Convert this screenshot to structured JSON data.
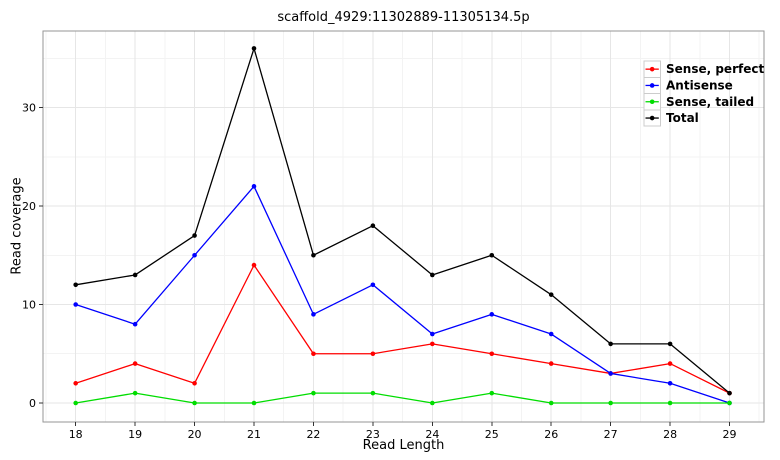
{
  "chart_data": {
    "type": "line",
    "title": "scaffold_4929:11302889-11305134.5p",
    "xlabel": "Read Length",
    "ylabel": "Read coverage",
    "x": [
      18,
      19,
      20,
      21,
      22,
      23,
      24,
      25,
      26,
      27,
      28,
      29
    ],
    "series": [
      {
        "name": "Sense, perfect",
        "color": "#FF0000",
        "values": [
          2,
          4,
          2,
          14,
          5,
          5,
          6,
          5,
          4,
          3,
          4,
          1
        ]
      },
      {
        "name": "Antisense",
        "color": "#0000FF",
        "values": [
          10,
          8,
          15,
          22,
          9,
          12,
          7,
          9,
          7,
          3,
          2,
          0
        ]
      },
      {
        "name": "Sense, tailed",
        "color": "#00DD00",
        "values": [
          0,
          1,
          0,
          0,
          1,
          1,
          0,
          1,
          0,
          0,
          0,
          0
        ]
      },
      {
        "name": "Total",
        "color": "#000000",
        "values": [
          12,
          13,
          17,
          36,
          15,
          18,
          13,
          15,
          11,
          6,
          6,
          1
        ]
      }
    ],
    "x_ticks": [
      18,
      19,
      20,
      21,
      22,
      23,
      24,
      25,
      26,
      27,
      28,
      29
    ],
    "y_ticks": [
      0,
      10,
      20,
      30
    ],
    "y_minor_ticks": [
      5,
      15,
      25,
      35
    ],
    "xlim": [
      17.45,
      29.58
    ],
    "ylim": [
      -1.93,
      37.77
    ],
    "grid": {
      "major": true,
      "minor": true
    },
    "legend_position": "top-right-inside",
    "style": {
      "panel_bg": "#FFFFFF",
      "panel_border": "#969696",
      "grid_major": "#E6E6E6",
      "grid_minor": "#F3F3F3",
      "tick_color": "#333333",
      "text_color": "#000000",
      "legend_key_bg": "#FFFFFF",
      "legend_key_border": "#CCCCCC"
    }
  }
}
